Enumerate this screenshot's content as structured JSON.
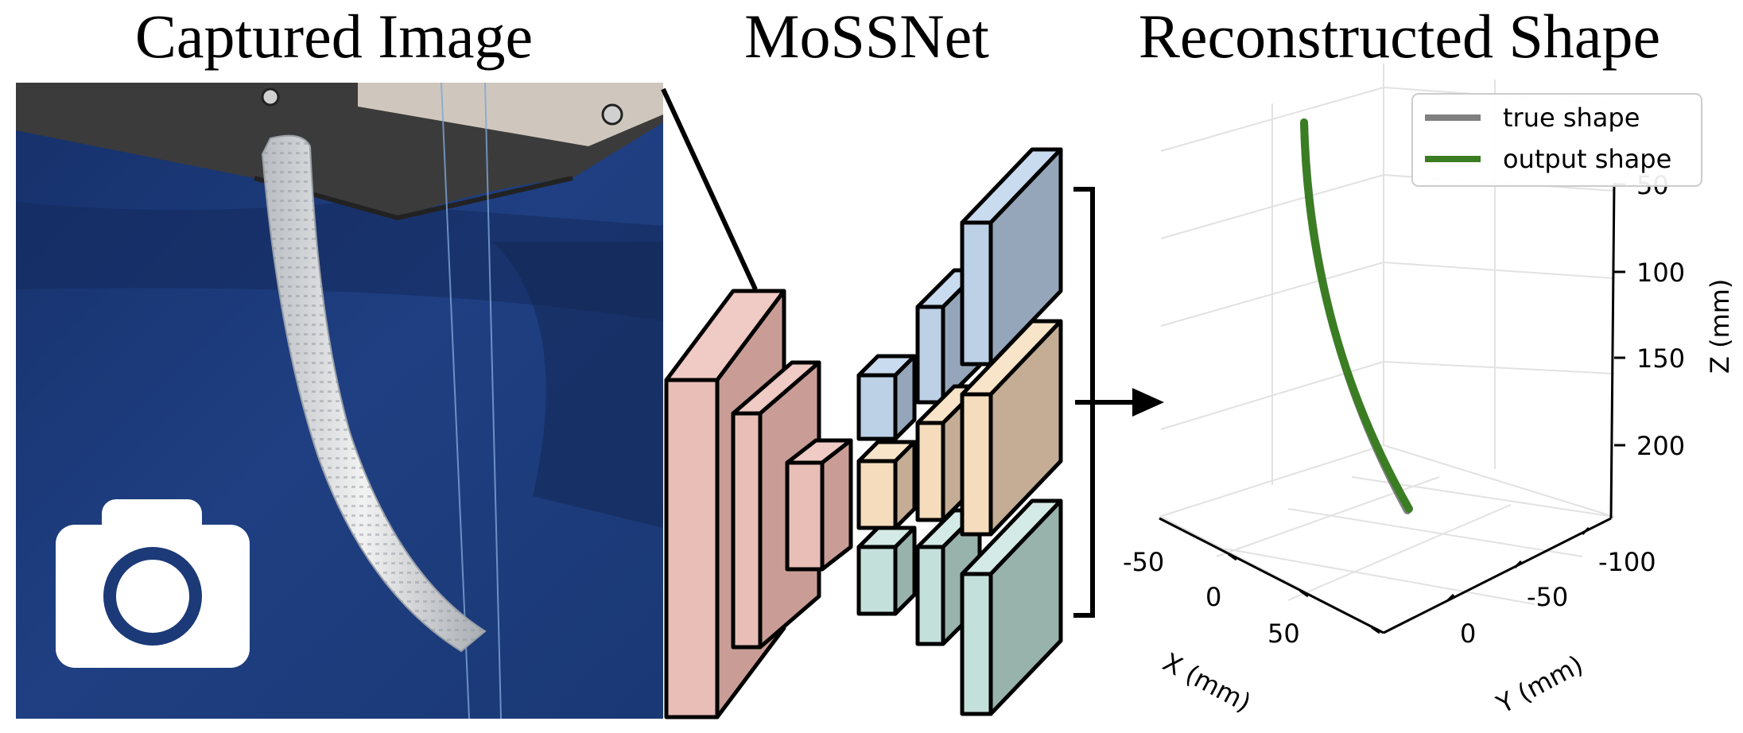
{
  "titles": {
    "captured": "Captured Image",
    "network": "MoSSNet",
    "reconstructed": "Reconstructed Shape"
  },
  "photo": {
    "icon": "camera-icon",
    "background_color": "#1c3a78",
    "icon_color": "#ffffff"
  },
  "network": {
    "encoder_color": "#e8c2bc",
    "decoder_colors": [
      "#bcd0e6",
      "#f4dcbc",
      "#c4e0da"
    ],
    "icons": [
      "bracket",
      "arrow-right-icon"
    ]
  },
  "plot3d": {
    "legend": [
      {
        "label": "true shape",
        "color": "#808080"
      },
      {
        "label": "output shape",
        "color": "#3a7d23"
      }
    ],
    "z_axis": {
      "label": "Z (mm)",
      "ticks": [
        "50",
        "100",
        "150",
        "200"
      ]
    },
    "x_axis": {
      "label": "X (mm)",
      "ticks": [
        "-50",
        "0",
        "50"
      ]
    },
    "y_axis": {
      "label": "Y (mm)",
      "ticks": [
        "-100",
        "-50",
        "0"
      ]
    }
  }
}
